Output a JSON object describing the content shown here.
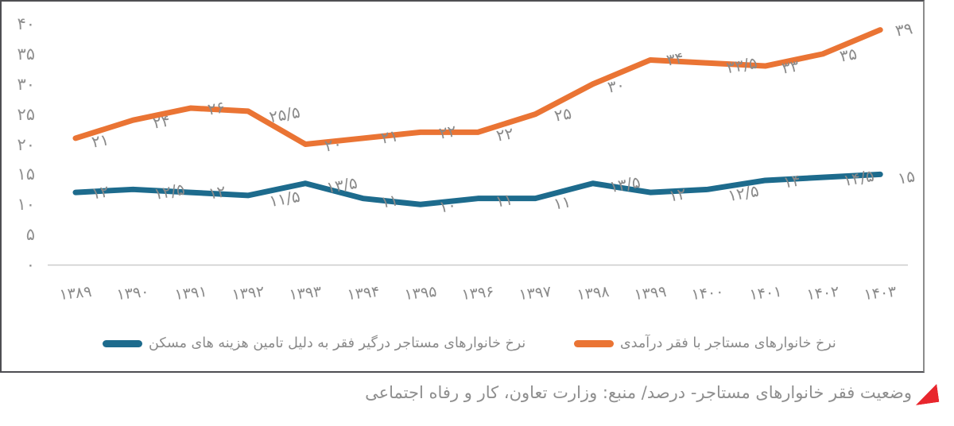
{
  "chart_data": {
    "type": "line",
    "title": "",
    "xlabel": "",
    "ylabel": "",
    "categories": [
      "۱۳۸۹",
      "۱۳۹۰",
      "۱۳۹۱",
      "۱۳۹۲",
      "۱۳۹۳",
      "۱۳۹۴",
      "۱۳۹۵",
      "۱۳۹۶",
      "۱۳۹۷",
      "۱۳۹۸",
      "۱۳۹۹",
      "۱۴۰۰",
      "۱۴۰۱",
      "۱۴۰۲",
      "۱۴۰۳"
    ],
    "categories_western": [
      1389,
      1390,
      1391,
      1392,
      1393,
      1394,
      1395,
      1396,
      1397,
      1398,
      1399,
      1400,
      1401,
      1402,
      1403
    ],
    "series": [
      {
        "name": "نرخ خانوارهای مستاجر با فقر درآمدی",
        "color": "#ea7434",
        "values": [
          21,
          24,
          26,
          25.5,
          20,
          21,
          22,
          22,
          25,
          30,
          34,
          33.5,
          33,
          35,
          39
        ],
        "labels": [
          "۲۱",
          "۲۴",
          "۲۶",
          "۲۵/۵",
          "۲۰",
          "۲۱",
          "۲۲",
          "۲۲",
          "۲۵",
          "۳۰",
          "۳۴",
          "۳۳/۵",
          "۳۳",
          "۳۵",
          "۳۹"
        ]
      },
      {
        "name": "نرخ خانوارهای مستاجر درگیر فقر به دلیل تامین هزینه های مسکن",
        "color": "#1d6b8d",
        "values": [
          12,
          12.5,
          12,
          11.5,
          13.5,
          11,
          10,
          11,
          11,
          13.5,
          12,
          12.5,
          14,
          14.5,
          15
        ],
        "labels": [
          "۱۲",
          "۱۲/۵",
          "۱۲",
          "۱۱/۵",
          "۱۳/۵",
          "۱۱",
          "۱۰",
          "۱۱",
          "۱۱",
          "۱۳/۵",
          "۱۲",
          "۱۲/۵",
          "۱۴",
          "۱۴/۵",
          "۱۵"
        ]
      }
    ],
    "y_axis": {
      "range": [
        0,
        40
      ],
      "ticks": [
        {
          "label": "۰",
          "value": 0
        },
        {
          "label": "۵",
          "value": 5
        },
        {
          "label": "۱۰",
          "value": 10
        },
        {
          "label": "۱۵",
          "value": 15
        },
        {
          "label": "۲۰",
          "value": 20
        },
        {
          "label": "۲۵",
          "value": 25
        },
        {
          "label": "۳۰",
          "value": 30
        },
        {
          "label": "۳۵",
          "value": 35
        },
        {
          "label": "۴۰",
          "value": 40
        }
      ]
    },
    "legend_position": "bottom",
    "grid": "baseline-only"
  },
  "caption": {
    "text": "وضعیت فقر خانوارهای مستاجر- درصد/ منبع: وزارت تعاون، کار و رفاه اجتماعی",
    "marker_color": "#e8262d"
  },
  "colors": {
    "label_gray": "#8a8a8a",
    "axis_gray": "#909090",
    "baseline_gray": "#cccccc",
    "frame_border": "#4e4e52"
  }
}
